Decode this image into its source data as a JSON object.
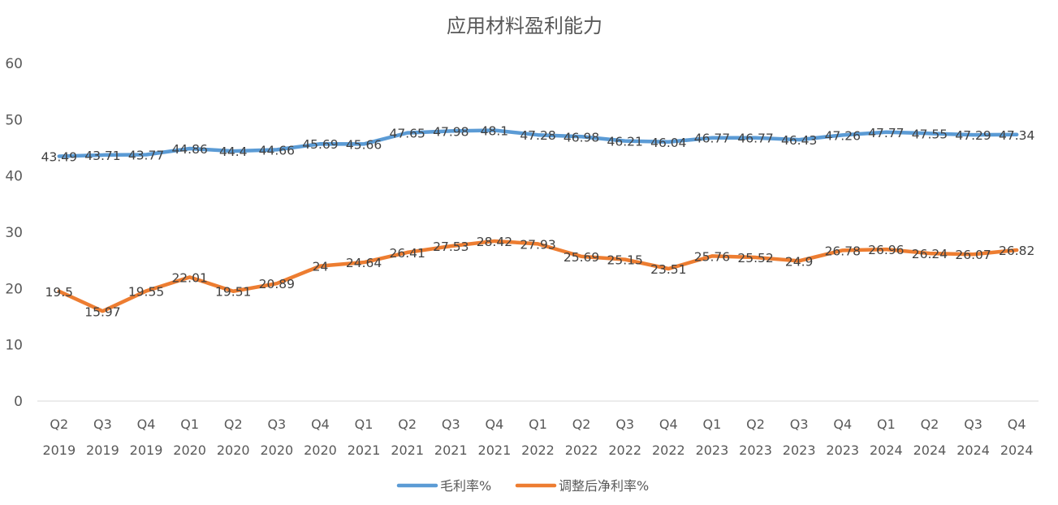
{
  "chart_data": {
    "type": "line",
    "title": "应用材料盈利能力",
    "xlabel": "",
    "ylabel": "",
    "ylim": [
      0,
      60
    ],
    "yticks": [
      0,
      10,
      20,
      30,
      40,
      50,
      60
    ],
    "grid": false,
    "legend_position": "bottom",
    "categories": [
      {
        "q": "Q2",
        "y": "2019"
      },
      {
        "q": "Q3",
        "y": "2019"
      },
      {
        "q": "Q4",
        "y": "2019"
      },
      {
        "q": "Q1",
        "y": "2020"
      },
      {
        "q": "Q2",
        "y": "2020"
      },
      {
        "q": "Q3",
        "y": "2020"
      },
      {
        "q": "Q4",
        "y": "2020"
      },
      {
        "q": "Q1",
        "y": "2021"
      },
      {
        "q": "Q2",
        "y": "2021"
      },
      {
        "q": "Q3",
        "y": "2021"
      },
      {
        "q": "Q4",
        "y": "2021"
      },
      {
        "q": "Q1",
        "y": "2022"
      },
      {
        "q": "Q2",
        "y": "2022"
      },
      {
        "q": "Q3",
        "y": "2022"
      },
      {
        "q": "Q4",
        "y": "2022"
      },
      {
        "q": "Q1",
        "y": "2023"
      },
      {
        "q": "Q2",
        "y": "2023"
      },
      {
        "q": "Q3",
        "y": "2023"
      },
      {
        "q": "Q4",
        "y": "2023"
      },
      {
        "q": "Q1",
        "y": "2024"
      },
      {
        "q": "Q2",
        "y": "2024"
      },
      {
        "q": "Q3",
        "y": "2024"
      },
      {
        "q": "Q4",
        "y": "2024"
      }
    ],
    "series": [
      {
        "name": "毛利率%",
        "color": "#5B9BD5",
        "values": [
          43.49,
          43.71,
          43.77,
          44.86,
          44.4,
          44.66,
          45.69,
          45.66,
          47.65,
          47.98,
          48.1,
          47.28,
          46.98,
          46.21,
          46.04,
          46.77,
          46.77,
          46.43,
          47.26,
          47.77,
          47.55,
          47.29,
          47.34
        ]
      },
      {
        "name": "调整后净利率%",
        "color": "#ED7D31",
        "values": [
          19.5,
          15.97,
          19.55,
          22.01,
          19.51,
          20.89,
          24,
          24.64,
          26.41,
          27.53,
          28.42,
          27.93,
          25.69,
          25.15,
          23.51,
          25.76,
          25.52,
          24.9,
          26.78,
          26.96,
          26.24,
          26.07,
          26.82
        ]
      }
    ]
  }
}
